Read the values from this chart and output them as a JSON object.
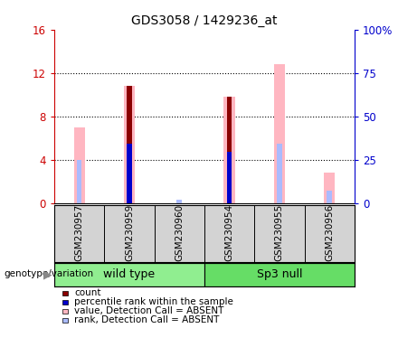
{
  "title": "GDS3058 / 1429236_at",
  "samples": [
    "GSM230957",
    "GSM230959",
    "GSM230960",
    "GSM230954",
    "GSM230955",
    "GSM230956"
  ],
  "left_ylim": [
    0,
    16
  ],
  "right_ylim": [
    0,
    100
  ],
  "left_yticks": [
    0,
    4,
    8,
    12,
    16
  ],
  "right_yticks": [
    0,
    25,
    50,
    75,
    100
  ],
  "left_yticklabels": [
    "0",
    "4",
    "8",
    "12",
    "16"
  ],
  "right_yticklabels": [
    "0",
    "25",
    "50",
    "75",
    "100%"
  ],
  "left_color": "#CC0000",
  "right_color": "#0000CC",
  "count_values": [
    0,
    10.8,
    0,
    9.8,
    0,
    0
  ],
  "rank_values": [
    0,
    5.5,
    0,
    4.7,
    0,
    0
  ],
  "absent_value_values": [
    7.0,
    10.8,
    0,
    9.8,
    12.8,
    2.8
  ],
  "absent_rank_values": [
    4.0,
    5.5,
    0.3,
    4.7,
    5.5,
    1.1
  ],
  "count_color": "#8B0000",
  "rank_color": "#0000CC",
  "absent_value_color": "#FFB6C1",
  "absent_rank_color": "#AABBFF",
  "legend_entries": [
    {
      "color": "#8B0000",
      "label": "count"
    },
    {
      "color": "#0000CC",
      "label": "percentile rank within the sample"
    },
    {
      "color": "#FFB6C1",
      "label": "value, Detection Call = ABSENT"
    },
    {
      "color": "#AABBFF",
      "label": "rank, Detection Call = ABSENT"
    }
  ],
  "group_info": [
    {
      "xmin": -0.5,
      "xmax": 2.5,
      "label": "wild type",
      "color": "#90EE90"
    },
    {
      "xmin": 2.5,
      "xmax": 5.5,
      "label": "Sp3 null",
      "color": "#66DD66"
    }
  ],
  "genotype_label": "genotype/variation",
  "plot_bg_color": "#FFFFFF"
}
